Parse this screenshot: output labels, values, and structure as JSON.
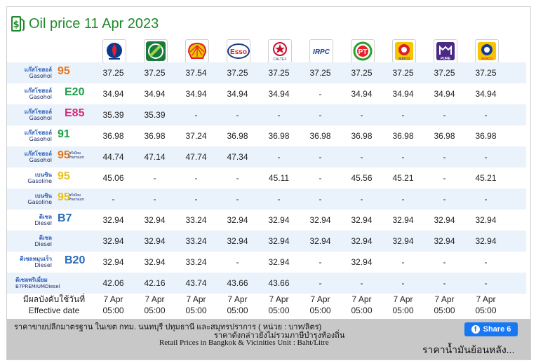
{
  "title": "Oil price 11 Apr 2023",
  "brands": [
    {
      "name": "ptt-logo",
      "color": "#0a3a8c"
    },
    {
      "name": "bangchak-logo",
      "color": "#1a7a3a"
    },
    {
      "name": "shell-logo",
      "color": "#f2c400"
    },
    {
      "name": "esso-logo",
      "color": "#d8202a"
    },
    {
      "name": "caltex-logo",
      "color": "#c8102e"
    },
    {
      "name": "irpc-logo",
      "color": "#1c3f94"
    },
    {
      "name": "pt-logo",
      "color": "#2aa02a"
    },
    {
      "name": "susco-logo",
      "color": "#e8a000"
    },
    {
      "name": "pure-logo",
      "color": "#4a2a86"
    },
    {
      "name": "susco-dealers-logo",
      "color": "#e8a000"
    }
  ],
  "brand_text": {
    "esso": "Esso",
    "caltex": "CALTEX",
    "irpc": "IRPC",
    "pt": "PT",
    "susco": "SUSCO",
    "pure": "PURE"
  },
  "rows": [
    {
      "th": "แก๊สโซฮอล์",
      "en": "Gasohol",
      "oct": "95",
      "prem": "",
      "color": "#e8751a",
      "prices": [
        "37.25",
        "37.25",
        "37.54",
        "37.25",
        "37.25",
        "37.25",
        "37.25",
        "37.25",
        "37.25",
        "37.25"
      ]
    },
    {
      "th": "แก๊สโซฮอล์",
      "en": "Gasohol",
      "oct": "E20",
      "prem": "",
      "color": "#1aa04a",
      "prices": [
        "34.94",
        "34.94",
        "34.94",
        "34.94",
        "34.94",
        "-",
        "34.94",
        "34.94",
        "34.94",
        "34.94"
      ]
    },
    {
      "th": "แก๊สโซฮอล์",
      "en": "Gasohol",
      "oct": "E85",
      "prem": "",
      "color": "#d62a7a",
      "prices": [
        "35.39",
        "35.39",
        "-",
        "-",
        "-",
        "-",
        "-",
        "-",
        "-",
        "-"
      ]
    },
    {
      "th": "แก๊สโซฮอล์",
      "en": "Gasohol",
      "oct": "91",
      "prem": "",
      "color": "#1aa04a",
      "prices": [
        "36.98",
        "36.98",
        "37.24",
        "36.98",
        "36.98",
        "36.98",
        "36.98",
        "36.98",
        "36.98",
        "36.98"
      ]
    },
    {
      "th": "แก๊สโซฮอล์",
      "en": "Gasohol",
      "oct": "95",
      "prem": "พรีเมี่ยม Premium",
      "color": "#e8751a",
      "prices": [
        "44.74",
        "47.14",
        "47.74",
        "47.34",
        "-",
        "-",
        "-",
        "-",
        "-",
        "-"
      ]
    },
    {
      "th": "เบนซิน",
      "en": "Gasoline",
      "oct": "95",
      "prem": "",
      "color": "#e8c01a",
      "prices": [
        "45.06",
        "-",
        "-",
        "-",
        "45.11",
        "-",
        "45.56",
        "45.21",
        "-",
        "45.21"
      ]
    },
    {
      "th": "เบนซิน",
      "en": "Gasoline",
      "oct": "95",
      "prem": "พรีเมี่ยม Premium",
      "color": "#e8c01a",
      "prices": [
        "-",
        "-",
        "-",
        "-",
        "-",
        "-",
        "-",
        "-",
        "-",
        "-"
      ]
    },
    {
      "th": "ดีเซล",
      "en": "Diesel",
      "oct": "B7",
      "prem": "",
      "color": "#2a6ab8",
      "prices": [
        "32.94",
        "32.94",
        "33.24",
        "32.94",
        "32.94",
        "32.94",
        "32.94",
        "32.94",
        "32.94",
        "32.94"
      ]
    },
    {
      "th": "ดีเซล",
      "en": "Diesel",
      "oct": "",
      "prem": "",
      "color": "#2a6ab8",
      "prices": [
        "32.94",
        "32.94",
        "33.24",
        "32.94",
        "32.94",
        "32.94",
        "32.94",
        "32.94",
        "32.94",
        "32.94"
      ]
    },
    {
      "th": "ดีเซลหมุนเร็ว",
      "en": "Diesel",
      "oct": "B20",
      "prem": "",
      "color": "#2a6ab8",
      "prices": [
        "32.94",
        "32.94",
        "33.24",
        "-",
        "32.94",
        "-",
        "32.94",
        "-",
        "-",
        "-"
      ]
    },
    {
      "long": true,
      "th": "ดีเซลพรีเมี่ยม",
      "en": "B7PREMIUMDiesel",
      "oct": "",
      "prem": "",
      "color": "#2a6ab8",
      "prices": [
        "42.06",
        "42.16",
        "43.74",
        "43.66",
        "43.66",
        "-",
        "-",
        "-",
        "-",
        "-"
      ]
    }
  ],
  "effective": {
    "label_th": "มีผลบังคับใช้วันที่",
    "label_en": "Effective date",
    "dates": [
      "7 Apr",
      "7 Apr",
      "7 Apr",
      "7 Apr",
      "7 Apr",
      "7 Apr",
      "7 Apr",
      "7 Apr",
      "7 Apr",
      "7 Apr"
    ],
    "times": [
      "05:00",
      "05:00",
      "05:00",
      "05:00",
      "05:00",
      "05:00",
      "05:00",
      "05:00",
      "05:00",
      "05:00"
    ]
  },
  "footer": {
    "line1": "ราคาขายปลีกมาตรฐาน ในเขต กทม. นนทบุรี ปทุมธานี และสมุทรปราการ ( หน่วย : บาท/ลิตร)",
    "line2": "ราคาดังกล่าวยังไม่รวมภาษีบำรุงท้องถิ่น",
    "line3": "Retail Prices in Bangkok & Vicinities Unit : Baht/Litre",
    "share_label": "Share 6",
    "history_link": "ราคาน้ำมันย้อนหลัง..."
  }
}
